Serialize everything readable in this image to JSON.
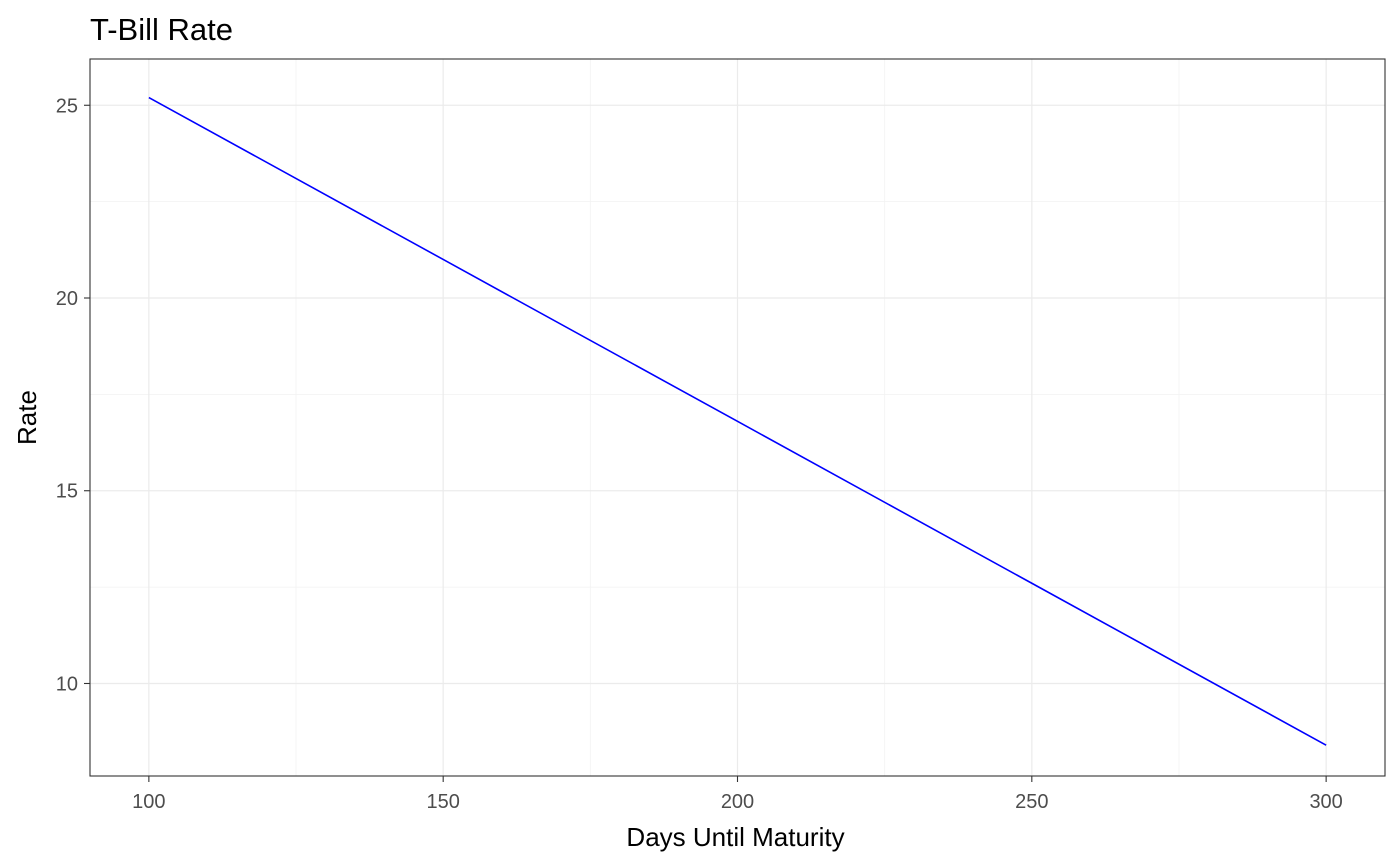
{
  "chart_data": {
    "type": "line",
    "title": "T-Bill Rate",
    "xlabel": "Days Until Maturity",
    "ylabel": "Rate",
    "xlim": [
      90,
      310
    ],
    "ylim": [
      7.6,
      26.2
    ],
    "x_ticks": [
      100,
      150,
      200,
      250,
      300
    ],
    "y_ticks": [
      10,
      15,
      20,
      25
    ],
    "x_tick_labels": [
      "100",
      "150",
      "200",
      "250",
      "300"
    ],
    "y_tick_labels": [
      "10",
      "15",
      "20",
      "25"
    ],
    "grid": true,
    "legend": "none",
    "series": [
      {
        "color": "#0000ff",
        "x": [
          100,
          150,
          200,
          250,
          300
        ],
        "values": [
          25.2,
          21.0,
          16.8,
          12.6,
          8.4
        ]
      }
    ]
  }
}
